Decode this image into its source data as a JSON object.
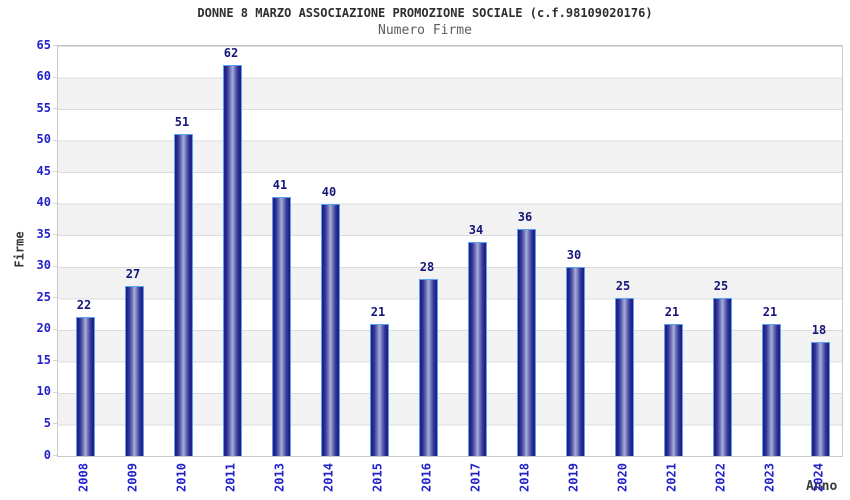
{
  "chart_data": {
    "type": "bar",
    "title": "DONNE 8 MARZO ASSOCIAZIONE PROMOZIONE SOCIALE (c.f.98109020176)",
    "subtitle": "Numero Firme",
    "categories": [
      "2008",
      "2009",
      "2010",
      "2011",
      "2013",
      "2014",
      "2015",
      "2016",
      "2017",
      "2018",
      "2019",
      "2020",
      "2021",
      "2022",
      "2023",
      "2024"
    ],
    "values": [
      22,
      27,
      51,
      62,
      41,
      40,
      21,
      28,
      34,
      36,
      30,
      25,
      21,
      25,
      21,
      18
    ],
    "xlabel": "Anno",
    "ylabel": "Firme",
    "ylim": [
      0,
      65
    ],
    "ytick_step": 5,
    "grid": true,
    "legend": "none",
    "x_labels_rotated_degrees": 90,
    "alternating_bands": true
  },
  "colors": {
    "background": "#ffffff",
    "title_text": "#2e2e2e",
    "subtitle_text": "#5e5e5e",
    "axis_tick_text": "#2222cc",
    "value_label_text": "#16167a",
    "axis_title_text": "#333333",
    "plot_border": "#c9c9c9",
    "gridline": "#dcdcdc",
    "band_light": "#ffffff",
    "band_gray": "#f2f2f2",
    "bar_outline": "#5aa2f0",
    "bar_edge": "#1e1e85",
    "bar_center": "#a9afda"
  }
}
